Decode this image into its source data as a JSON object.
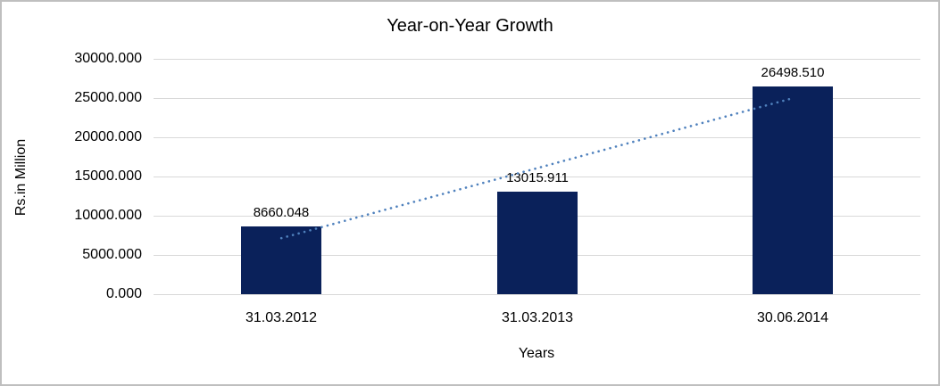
{
  "chart_data": {
    "type": "bar",
    "title": "Year-on-Year Growth",
    "xlabel": "Years",
    "ylabel": "Rs.in Million",
    "categories": [
      "31.03.2012",
      "31.03.2013",
      "30.06.2014"
    ],
    "values": [
      8660.048,
      13015.911,
      26498.51
    ],
    "data_labels": [
      "8660.048",
      "13015.911",
      "26498.510"
    ],
    "y_tick_values": [
      0,
      5000,
      10000,
      15000,
      20000,
      25000,
      30000
    ],
    "y_tick_labels": [
      "0.000",
      "5000.000",
      "10000.000",
      "15000.000",
      "20000.000",
      "25000.000",
      "30000.000"
    ],
    "ylim": [
      0,
      30000
    ],
    "grid": "horizontal",
    "legend": "none",
    "bar_color": "#0a215a",
    "gridline_color": "#d9d9d9",
    "frame_color": "#bfbfbf",
    "trendline": {
      "type": "linear",
      "style": "dotted",
      "color": "#4f81bd"
    }
  }
}
